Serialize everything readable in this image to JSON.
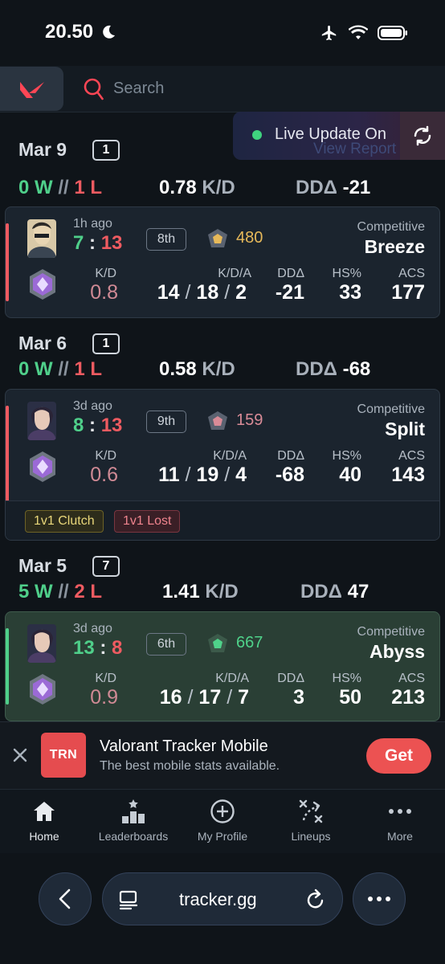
{
  "status": {
    "time": "20.50"
  },
  "search": {
    "placeholder": "Search"
  },
  "live": {
    "label": "Live Update On",
    "ghost": "View Report"
  },
  "days": [
    {
      "date": "Mar 9",
      "count": "1",
      "wins": "0 W",
      "losses": "1 L",
      "kd": "0.78",
      "dd": "-21"
    },
    {
      "date": "Mar 6",
      "count": "1",
      "wins": "0 W",
      "losses": "1 L",
      "kd": "0.58",
      "dd": "-68"
    },
    {
      "date": "Mar 5",
      "count": "7",
      "wins": "5 W",
      "losses": "2 L",
      "kd": "1.41",
      "dd": "47"
    }
  ],
  "labels": {
    "sep": "//",
    "kd_unit": "K/D",
    "dd_unit": "DDΔ",
    "kd": "K/D",
    "kda": "K/D/A",
    "dd": "DDΔ",
    "hs": "HS%",
    "acs": "ACS",
    "slash": "/",
    "colon": ":"
  },
  "matches": [
    {
      "ago": "1h ago",
      "score_a": "7",
      "score_b": "13",
      "place": "8th",
      "rr": "480",
      "mode": "Competitive",
      "map": "Breeze",
      "kd": "0.8",
      "k": "14",
      "d": "18",
      "a": "2",
      "dd": "-21",
      "hs": "33",
      "acs": "177",
      "result": "loss",
      "rr_color": "#e7b95a"
    },
    {
      "ago": "3d ago",
      "score_a": "8",
      "score_b": "13",
      "place": "9th",
      "rr": "159",
      "mode": "Competitive",
      "map": "Split",
      "kd": "0.6",
      "k": "11",
      "d": "19",
      "a": "4",
      "dd": "-68",
      "hs": "40",
      "acs": "143",
      "result": "loss",
      "rr_color": "#d98b97",
      "tags": [
        "1v1 Clutch",
        "1v1 Lost"
      ]
    },
    {
      "ago": "3d ago",
      "score_a": "13",
      "score_b": "8",
      "place": "6th",
      "rr": "667",
      "mode": "Competitive",
      "map": "Abyss",
      "kd": "0.9",
      "k": "16",
      "d": "17",
      "a": "7",
      "dd": "3",
      "hs": "50",
      "acs": "213",
      "result": "win",
      "rr_color": "#4fd38a"
    }
  ],
  "ad": {
    "logo": "TRN",
    "title": "Valorant Tracker Mobile",
    "subtitle": "The best mobile stats available.",
    "cta": "Get"
  },
  "nav": [
    {
      "label": "Home",
      "icon": "home-icon"
    },
    {
      "label": "Leaderboards",
      "icon": "leaderboards-icon"
    },
    {
      "label": "My Profile",
      "icon": "plus-circle-icon"
    },
    {
      "label": "Lineups",
      "icon": "lineups-icon"
    },
    {
      "label": "More",
      "icon": "more-icon"
    }
  ],
  "browser": {
    "url": "tracker.gg"
  },
  "colors": {
    "accent_red": "#ec5252",
    "win": "#4fcf8a",
    "loss": "#ef5b61"
  }
}
